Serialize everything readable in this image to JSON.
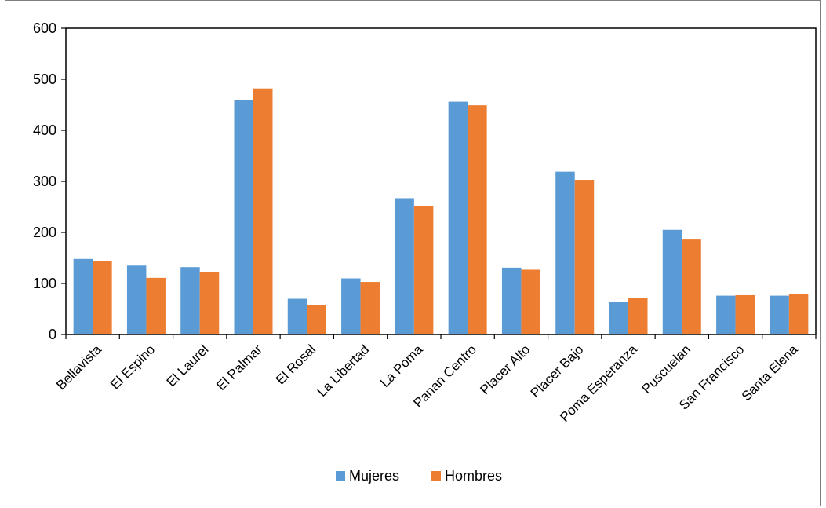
{
  "chart_data": {
    "type": "bar",
    "title": "",
    "xlabel": "",
    "ylabel": "",
    "ylim": [
      0,
      600
    ],
    "yticks": [
      0,
      100,
      200,
      300,
      400,
      500,
      600
    ],
    "grid": false,
    "legend_position": "bottom",
    "categories": [
      "Bellavista",
      "El Espino",
      "El Laurel",
      "El Palmar",
      "El Rosal",
      "La Libertad",
      "La Poma",
      "Panan Centro",
      "Placer Alto",
      "Placer Bajo",
      "Poma Esperanza",
      "Puscuelan",
      "San Francisco",
      "Santa Elena"
    ],
    "series": [
      {
        "name": "Mujeres",
        "color": "#5b9bd5",
        "values": [
          148,
          135,
          132,
          460,
          70,
          110,
          267,
          456,
          131,
          319,
          64,
          205,
          76,
          76
        ]
      },
      {
        "name": "Hombres",
        "color": "#ed7d31",
        "values": [
          144,
          111,
          123,
          482,
          58,
          103,
          251,
          449,
          127,
          303,
          72,
          186,
          77,
          79
        ]
      }
    ]
  }
}
